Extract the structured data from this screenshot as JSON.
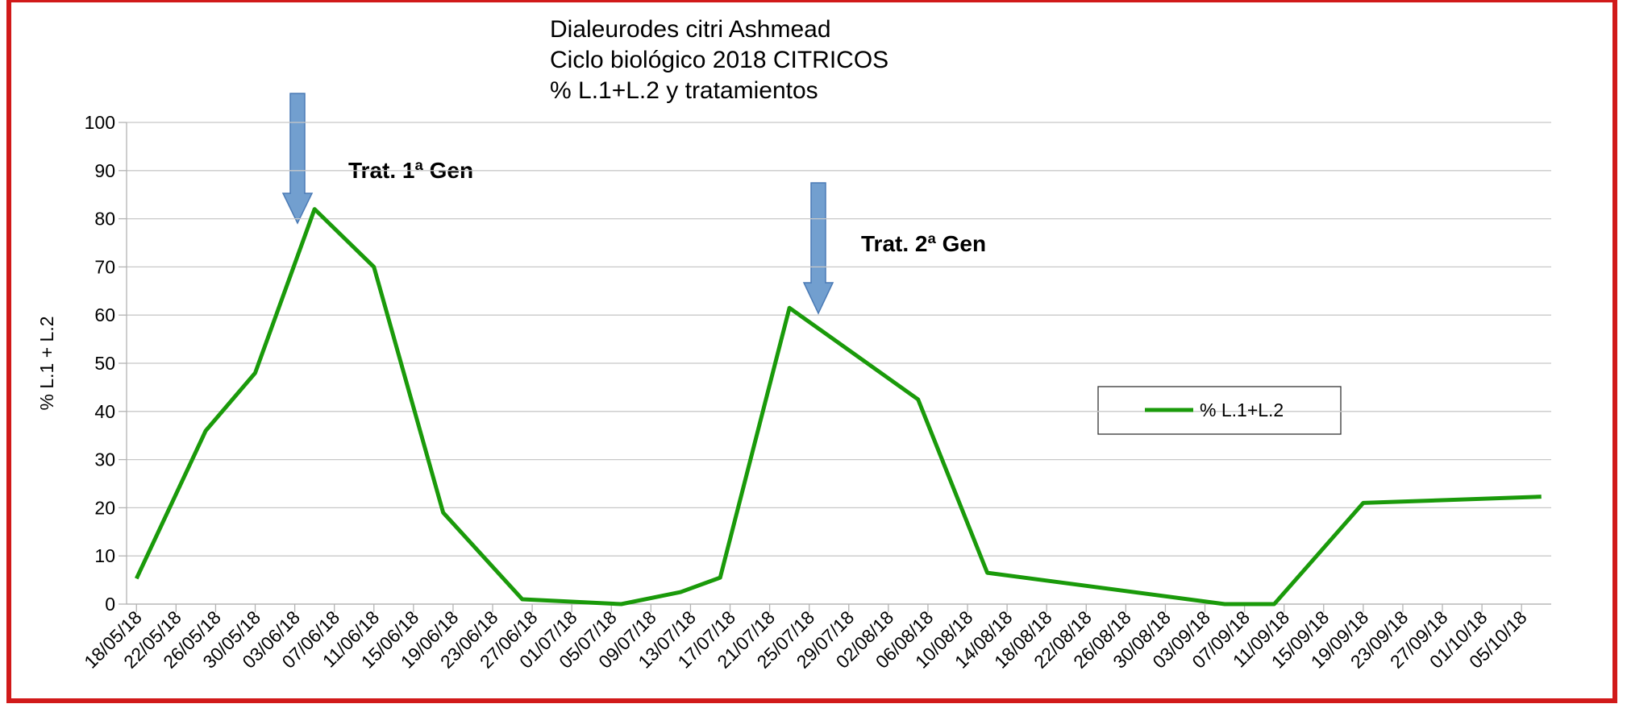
{
  "chart_data": {
    "type": "line",
    "title": [
      "Dialeurodes citri Ashmead",
      "Ciclo biológico 2018 CITRICOS",
      "% L.1+L.2 y tratamientos"
    ],
    "ylabel": "% L.1 + L.2",
    "annotations": [
      "Trat. 1ª Gen",
      "Trat. 2ª Gen"
    ],
    "x": [
      "18/05/18",
      "25/05/18",
      "30/05/18",
      "05/06/18",
      "11/06/18",
      "18/06/18",
      "26/06/18",
      "06/07/18",
      "12/07/18",
      "16/07/18",
      "23/07/18",
      "05/08/18",
      "12/08/18",
      "05/09/18",
      "10/09/18",
      "19/09/18",
      "07/10/18"
    ],
    "series": [
      {
        "name": "% L.1+L.2",
        "color": "#1a9a0a",
        "values": [
          5.3,
          36,
          48,
          82,
          70,
          19,
          1,
          0,
          2.5,
          5.5,
          61.5,
          42.5,
          6.5,
          0,
          0,
          21,
          22.3
        ]
      }
    ],
    "xlim": [
      "17/05/18",
      "08/10/18"
    ],
    "xticks": [
      "18/05/18",
      "22/05/18",
      "26/05/18",
      "30/05/18",
      "03/06/18",
      "07/06/18",
      "11/06/18",
      "15/06/18",
      "19/06/18",
      "23/06/18",
      "27/06/18",
      "01/07/18",
      "05/07/18",
      "09/07/18",
      "13/07/18",
      "17/07/18",
      "21/07/18",
      "25/07/18",
      "29/07/18",
      "02/08/18",
      "06/08/18",
      "10/08/18",
      "14/08/18",
      "18/08/18",
      "22/08/18",
      "26/08/18",
      "30/08/18",
      "03/09/18",
      "07/09/18",
      "11/09/18",
      "15/09/18",
      "19/09/18",
      "23/09/18",
      "27/09/18",
      "01/10/18",
      "05/10/18"
    ],
    "ylim": [
      0,
      100
    ],
    "yticks": [
      0,
      10,
      20,
      30,
      40,
      50,
      60,
      70,
      80,
      90,
      100
    ],
    "grid": true,
    "legend": "right"
  }
}
